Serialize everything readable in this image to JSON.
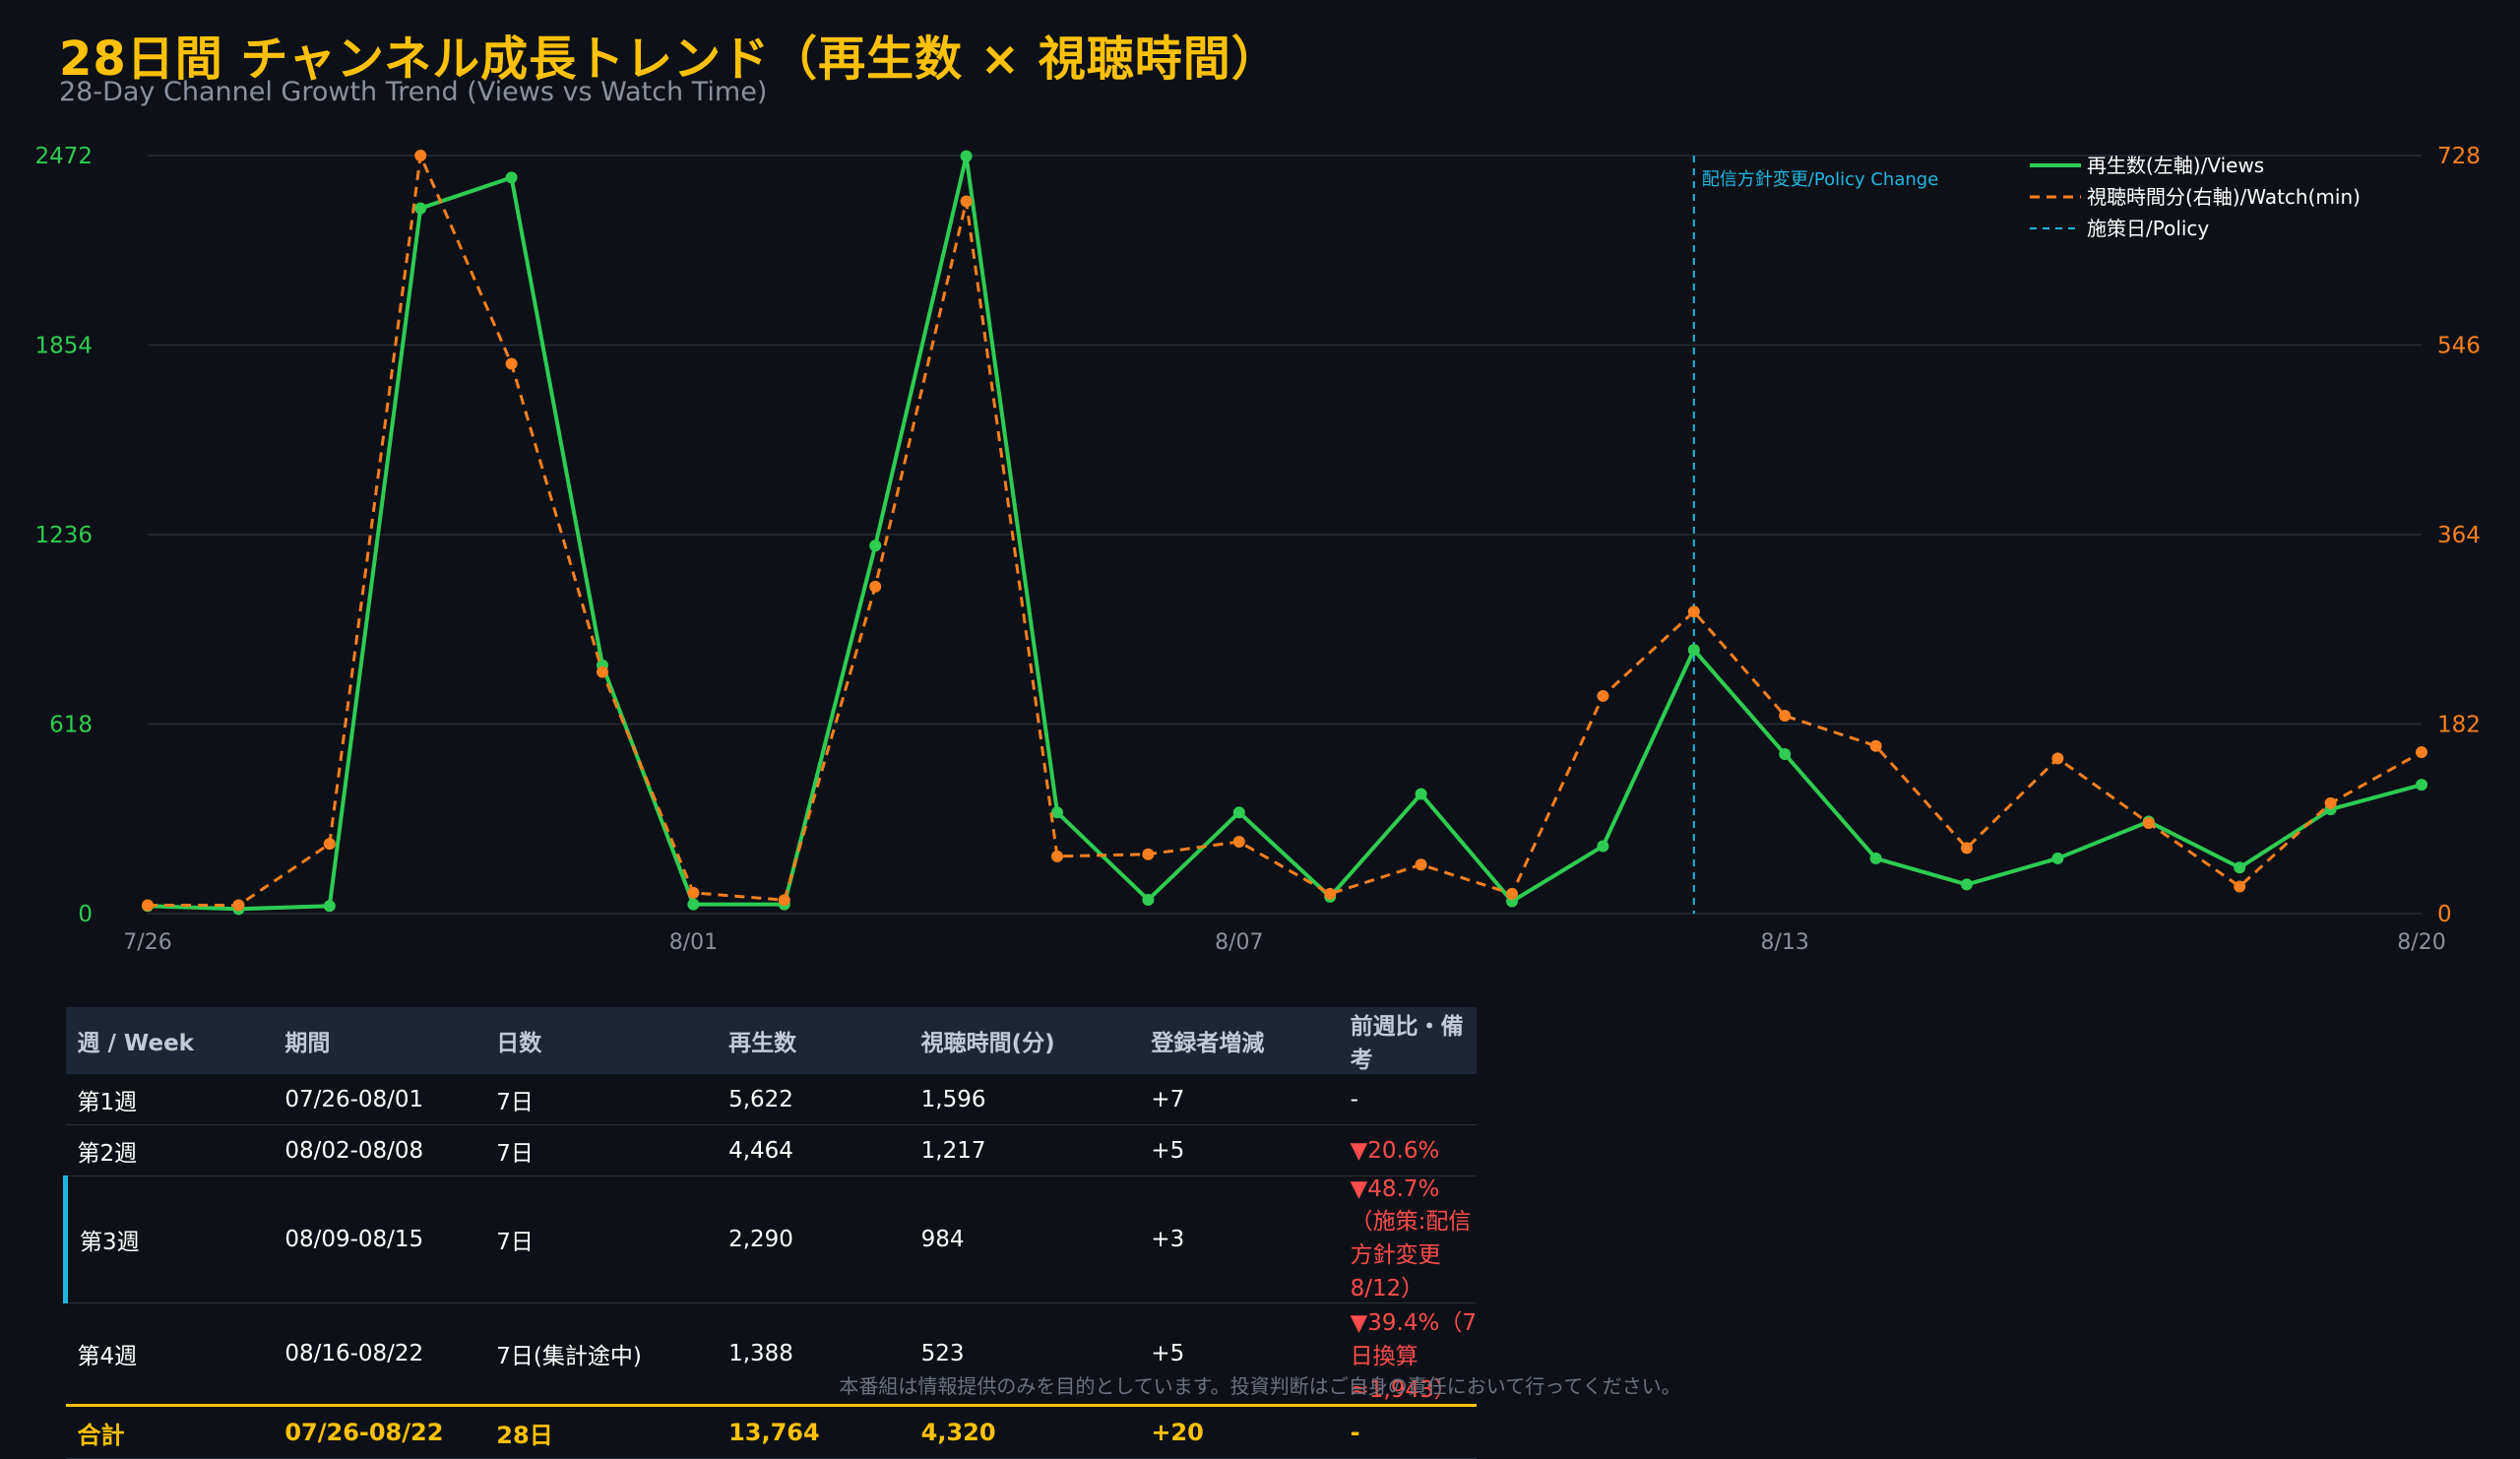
{
  "title": "28日間 チャンネル成長トレンド（再生数 × 視聴時間）",
  "subtitle": "28-Day Channel Growth Trend (Views vs Watch Time)",
  "chart_data": {
    "type": "line",
    "x_labels": [
      "7/26",
      "8/01",
      "8/07",
      "8/13",
      "8/20"
    ],
    "x": [
      "7/26",
      "7/27",
      "7/28",
      "7/29",
      "7/30",
      "7/31",
      "8/01",
      "8/02",
      "8/03",
      "8/04",
      "8/05",
      "8/06",
      "8/07",
      "8/08",
      "8/09",
      "8/10",
      "8/11",
      "8/12",
      "8/13",
      "8/14",
      "8/15",
      "8/16",
      "8/17",
      "8/18",
      "8/19",
      "8/20"
    ],
    "left_axis": {
      "ylim": [
        0,
        2472
      ],
      "ticks": [
        0,
        618,
        1236,
        1854,
        2472
      ]
    },
    "right_axis": {
      "ylim": [
        0,
        728
      ],
      "ticks": [
        0,
        182,
        364,
        546,
        728
      ]
    },
    "series": [
      {
        "name": "再生数(左軸)/Views",
        "axis": "left",
        "color": "#2ecc52",
        "style": "solid",
        "values": [
          25,
          15,
          25,
          2300,
          2400,
          810,
          30,
          30,
          1200,
          2470,
          330,
          45,
          330,
          55,
          390,
          40,
          220,
          860,
          520,
          180,
          95,
          180,
          300,
          150,
          340,
          420
        ]
      },
      {
        "name": "視聴時間分(右軸)/Watch(min)",
        "axis": "right",
        "color": "#f97f1f",
        "style": "dashed",
        "values": [
          8,
          8,
          67,
          728,
          528,
          232,
          20,
          13,
          314,
          684,
          55,
          57,
          69,
          19,
          47,
          19,
          209,
          290,
          190,
          161,
          63,
          149,
          87,
          26,
          106,
          155
        ]
      }
    ],
    "annotation": {
      "label": "配信方針変更/Policy Change",
      "x": "8/12",
      "color": "#1fb6e0"
    },
    "policy_legend": "施策日/Policy",
    "legend_position": "top-right",
    "grid": true
  },
  "table": {
    "headers": [
      "週 / Week",
      "期間",
      "日数",
      "再生数",
      "視聴時間(分)",
      "登録者増減",
      "前週比・備考"
    ],
    "rows": [
      {
        "week": "第1週",
        "period": "07/26-08/01",
        "days": "7日",
        "views": "5,622",
        "watch": "1,596",
        "subs": "+7",
        "note": "-",
        "neg": false
      },
      {
        "week": "第2週",
        "period": "08/02-08/08",
        "days": "7日",
        "views": "4,464",
        "watch": "1,217",
        "subs": "+5",
        "note": "▼20.6%",
        "neg": true
      },
      {
        "week": "第3週",
        "period": "08/09-08/15",
        "days": "7日",
        "views": "2,290",
        "watch": "984",
        "subs": "+3",
        "note": "▼48.7%（施策:配信方針変更 8/12）",
        "neg": true
      },
      {
        "week": "第4週",
        "period": "08/16-08/22",
        "days": "7日(集計途中)",
        "views": "1,388",
        "watch": "523",
        "subs": "+5",
        "note": "▼39.4%（7日換算≈1,943）",
        "neg": true
      }
    ],
    "total": {
      "week": "合計",
      "period": "07/26-08/22",
      "days": "28日",
      "views": "13,764",
      "watch": "4,320",
      "subs": "+20",
      "note": "-"
    }
  },
  "disclaimer": "本番組は情報提供のみを目的としています。投資判断はご自身の責任において行ってください。"
}
